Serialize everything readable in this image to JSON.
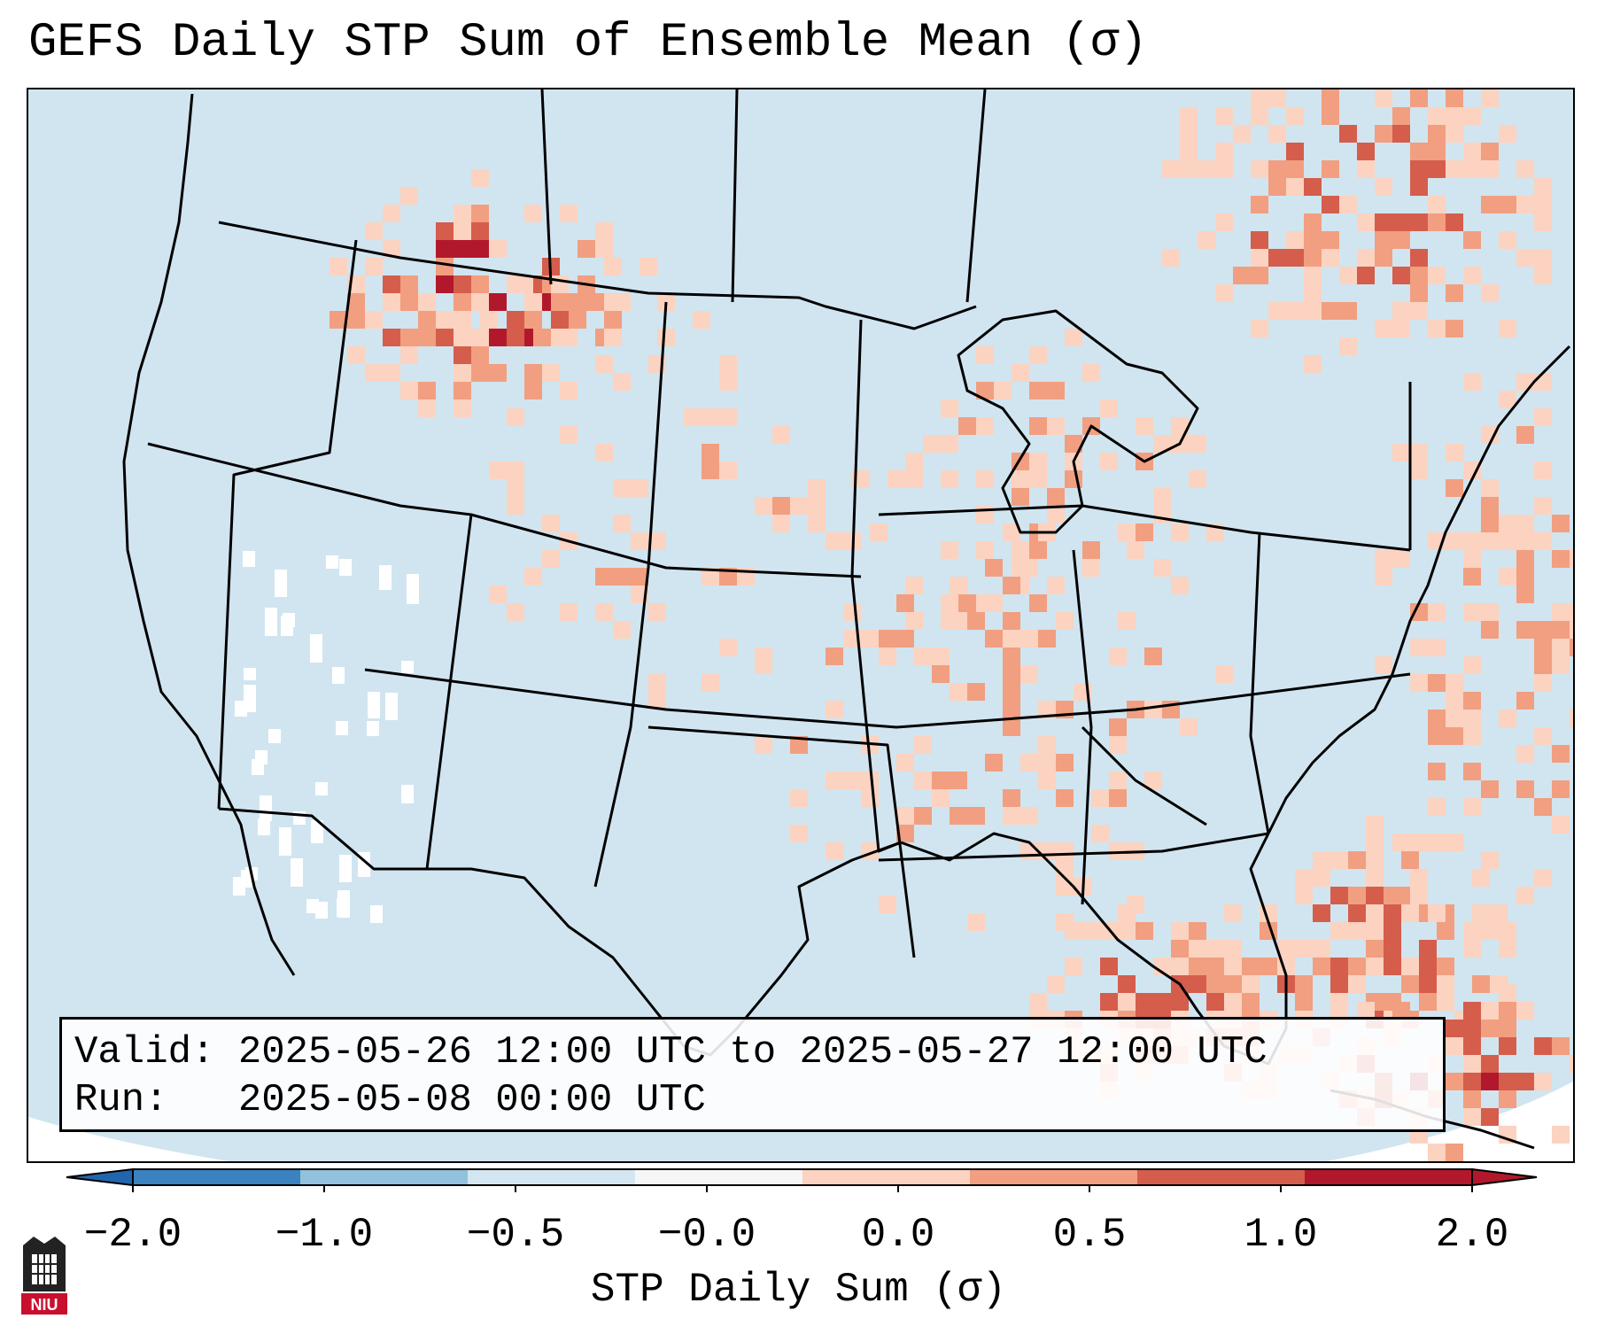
{
  "title": "GEFS Daily STP Sum of Ensemble Mean (σ)",
  "info": {
    "valid_label": "Valid:",
    "valid_value": "2025-05-26 12:00 UTC to 2025-05-27 12:00 UTC",
    "run_label": "Run:",
    "run_value": "2025-05-08 00:00 UTC"
  },
  "colorbar": {
    "label": "STP Daily Sum (σ)",
    "ticks": [
      "−2.0",
      "−1.0",
      "−0.5",
      "−0.0",
      "0.0",
      "0.5",
      "1.0",
      "2.0"
    ],
    "colors": [
      "#3a83c0",
      "#92c1de",
      "#d4e6f1",
      "#f6f6f6",
      "#fbd3c0",
      "#f19f80",
      "#d55d4c",
      "#b2182b"
    ]
  },
  "map": {
    "background_color": "#d1e5f0",
    "outside_color": "#ffffff",
    "boundary_color": "#000000"
  },
  "logo": {
    "text": "NIU",
    "icon": "niu-tower-icon"
  }
}
